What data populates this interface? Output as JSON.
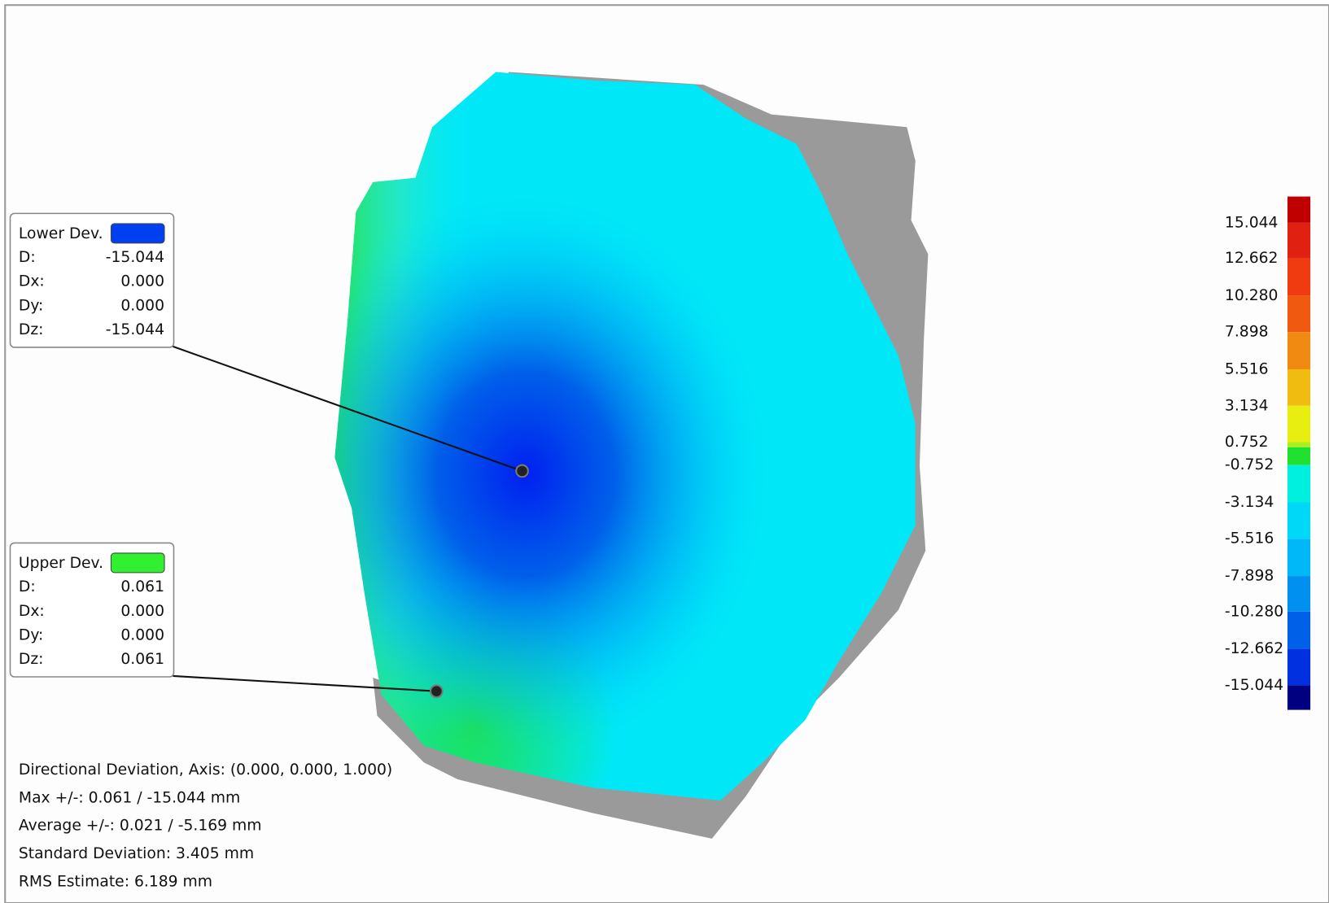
{
  "callouts": [
    {
      "title": "Lower Dev.",
      "rows": [
        [
          "D:",
          "-15.044"
        ],
        [
          "Dx:",
          "0.000"
        ],
        [
          "Dy:",
          "0.000"
        ],
        [
          "Dz:",
          "-15.044"
        ]
      ]
    },
    {
      "title": "Upper Dev.",
      "rows": [
        [
          "D:",
          "0.061"
        ],
        [
          "Dx:",
          "0.000"
        ],
        [
          "Dy:",
          "0.000"
        ],
        [
          "Dz:",
          "0.061"
        ]
      ]
    }
  ],
  "colorbar": {
    "labels": [
      "15.044",
      "12.662",
      "10.280",
      "7.898",
      "5.516",
      "3.134",
      "0.752",
      "-0.752",
      "-3.134",
      "-5.516",
      "-7.898",
      "-10.280",
      "-12.662",
      "-15.044"
    ]
  },
  "stats": [
    "Directional Deviation, Axis: (0.000, 0.000, 1.000)",
    "Max +/-: 0.061 / -15.044 mm",
    "Average +/-: 0.021 / -5.169 mm",
    "Standard Deviation: 3.405 mm",
    "RMS Estimate: 6.189 mm"
  ]
}
